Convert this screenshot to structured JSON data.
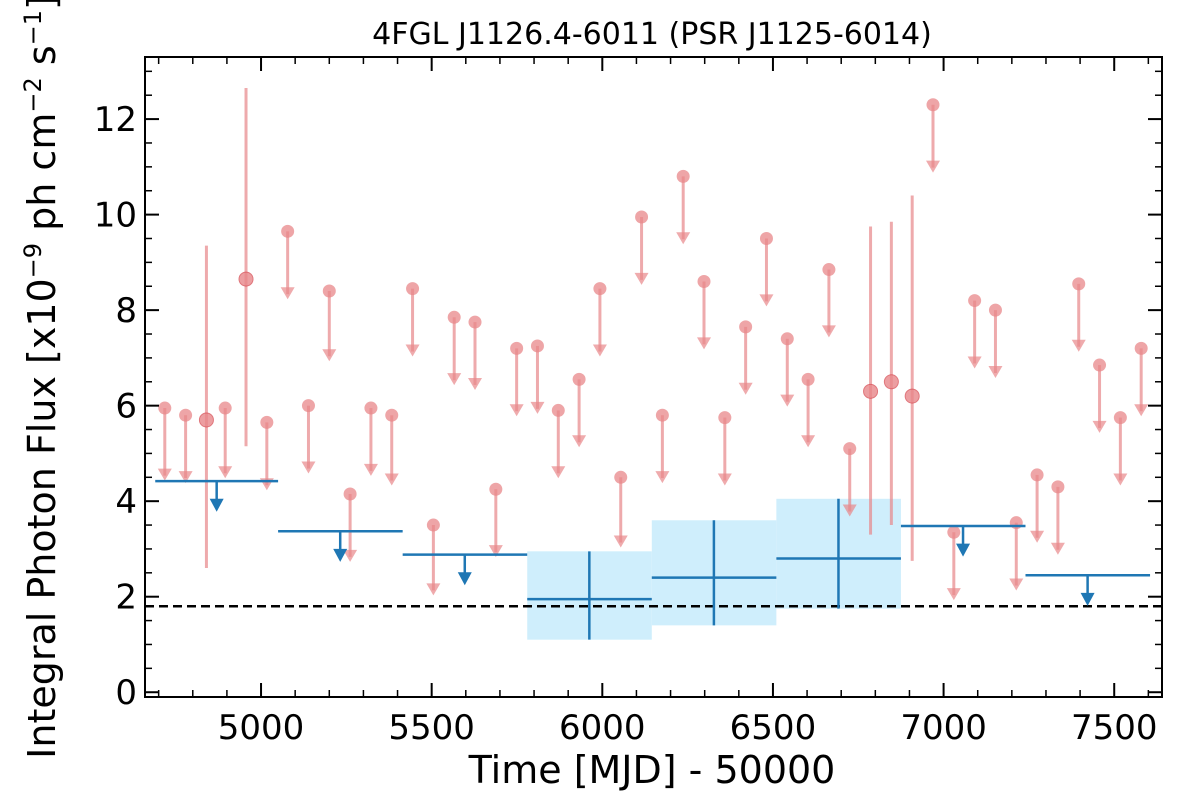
{
  "chart_data": {
    "type": "scatter",
    "title": "4FGL J1126.4-6011 (PSR J1125-6014)",
    "xlabel": "Time [MJD] - 50000",
    "ylabel": "Integral Photon Flux [x10",
    "ylabel_exp": "−9",
    "ylabel_mid": " ph cm",
    "ylabel_exp2": "−2",
    "ylabel_mid2": " s",
    "ylabel_exp3": "−1",
    "ylabel_end": "]",
    "xlim": [
      4660,
      7640
    ],
    "ylim": [
      -0.1,
      13.3
    ],
    "xticks": [
      5000,
      5500,
      6000,
      6500,
      7000,
      7500
    ],
    "xtick_labels": [
      "5000",
      "5500",
      "6000",
      "6500",
      "7000",
      "7500"
    ],
    "yticks": [
      0,
      2,
      4,
      6,
      8,
      10,
      12
    ],
    "ytick_labels": [
      "0",
      "2",
      "4",
      "6",
      "8",
      "10",
      "12"
    ],
    "reference_line": 1.8,
    "colors": {
      "short_bins": "#e8878a",
      "long_bins": "#1f77b4",
      "band_fill": "#cfeefc",
      "reference": "#000000"
    },
    "series": [
      {
        "points": [
          {
            "x": 4718,
            "y": 5.95,
            "upper_limit": true,
            "to": 4.45
          },
          {
            "x": 4779,
            "y": 5.8,
            "upper_limit": true,
            "to": 4.4
          },
          {
            "x": 4840,
            "y": 5.7,
            "upper_limit": false,
            "lo": 2.6,
            "hi": 9.35
          },
          {
            "x": 4895,
            "y": 5.95,
            "upper_limit": true,
            "to": 4.5
          },
          {
            "x": 4956,
            "y": 8.65,
            "upper_limit": false,
            "lo": 5.15,
            "hi": 12.65
          },
          {
            "x": 5017,
            "y": 5.65,
            "upper_limit": true,
            "to": 4.25
          },
          {
            "x": 5078,
            "y": 9.65,
            "upper_limit": true,
            "to": 8.25
          },
          {
            "x": 5139,
            "y": 6.0,
            "upper_limit": true,
            "to": 4.6
          },
          {
            "x": 5200,
            "y": 8.4,
            "upper_limit": true,
            "to": 6.95
          },
          {
            "x": 5261,
            "y": 4.15,
            "upper_limit": true,
            "to": 2.75
          },
          {
            "x": 5322,
            "y": 5.95,
            "upper_limit": true,
            "to": 4.55
          },
          {
            "x": 5383,
            "y": 5.8,
            "upper_limit": true,
            "to": 4.35
          },
          {
            "x": 5444,
            "y": 8.45,
            "upper_limit": true,
            "to": 7.05
          },
          {
            "x": 5505,
            "y": 3.5,
            "upper_limit": true,
            "to": 2.05
          },
          {
            "x": 5566,
            "y": 7.85,
            "upper_limit": true,
            "to": 6.45
          },
          {
            "x": 5627,
            "y": 7.75,
            "upper_limit": true,
            "to": 6.35
          },
          {
            "x": 5688,
            "y": 4.25,
            "upper_limit": true,
            "to": 2.85
          },
          {
            "x": 5749,
            "y": 7.2,
            "upper_limit": true,
            "to": 5.8
          },
          {
            "x": 5810,
            "y": 7.25,
            "upper_limit": true,
            "to": 5.85
          },
          {
            "x": 5871,
            "y": 5.9,
            "upper_limit": true,
            "to": 4.5
          },
          {
            "x": 5932,
            "y": 6.55,
            "upper_limit": true,
            "to": 5.15
          },
          {
            "x": 5993,
            "y": 8.45,
            "upper_limit": true,
            "to": 7.05
          },
          {
            "x": 6054,
            "y": 4.5,
            "upper_limit": true,
            "to": 3.05
          },
          {
            "x": 6115,
            "y": 9.95,
            "upper_limit": true,
            "to": 8.55
          },
          {
            "x": 6176,
            "y": 5.8,
            "upper_limit": true,
            "to": 4.4
          },
          {
            "x": 6237,
            "y": 10.8,
            "upper_limit": true,
            "to": 9.4
          },
          {
            "x": 6298,
            "y": 8.6,
            "upper_limit": true,
            "to": 7.2
          },
          {
            "x": 6359,
            "y": 5.75,
            "upper_limit": true,
            "to": 4.35
          },
          {
            "x": 6420,
            "y": 7.65,
            "upper_limit": true,
            "to": 6.25
          },
          {
            "x": 6481,
            "y": 9.5,
            "upper_limit": true,
            "to": 8.1
          },
          {
            "x": 6542,
            "y": 7.4,
            "upper_limit": true,
            "to": 6.0
          },
          {
            "x": 6603,
            "y": 6.55,
            "upper_limit": true,
            "to": 5.15
          },
          {
            "x": 6664,
            "y": 8.85,
            "upper_limit": true,
            "to": 7.45
          },
          {
            "x": 6725,
            "y": 5.1,
            "upper_limit": true,
            "to": 3.7
          },
          {
            "x": 6786,
            "y": 6.3,
            "upper_limit": false,
            "lo": 3.3,
            "hi": 9.75
          },
          {
            "x": 6847,
            "y": 6.5,
            "upper_limit": false,
            "lo": 3.5,
            "hi": 9.85
          },
          {
            "x": 6908,
            "y": 6.2,
            "upper_limit": false,
            "lo": 2.75,
            "hi": 10.4
          },
          {
            "x": 6969,
            "y": 12.3,
            "upper_limit": true,
            "to": 10.9
          },
          {
            "x": 7030,
            "y": 3.35,
            "upper_limit": true,
            "to": 1.95
          },
          {
            "x": 7091,
            "y": 8.2,
            "upper_limit": true,
            "to": 6.8
          },
          {
            "x": 7152,
            "y": 8.0,
            "upper_limit": true,
            "to": 6.6
          },
          {
            "x": 7213,
            "y": 3.55,
            "upper_limit": true,
            "to": 2.15
          },
          {
            "x": 7274,
            "y": 4.55,
            "upper_limit": true,
            "to": 3.15
          },
          {
            "x": 7335,
            "y": 4.3,
            "upper_limit": true,
            "to": 2.9
          },
          {
            "x": 7396,
            "y": 8.55,
            "upper_limit": true,
            "to": 7.15
          },
          {
            "x": 7457,
            "y": 6.85,
            "upper_limit": true,
            "to": 5.45
          },
          {
            "x": 7518,
            "y": 5.75,
            "upper_limit": true,
            "to": 4.35
          },
          {
            "x": 7579,
            "y": 7.2,
            "upper_limit": true,
            "to": 5.8
          }
        ]
      },
      {
        "bins": [
          {
            "x0": 4690,
            "x1": 5050,
            "y": 4.42,
            "upper_limit": true,
            "arrow_x": 4870,
            "to": 3.8
          },
          {
            "x0": 5050,
            "x1": 5415,
            "y": 3.37,
            "upper_limit": true,
            "arrow_x": 5232,
            "to": 2.75
          },
          {
            "x0": 5415,
            "x1": 5780,
            "y": 2.88,
            "upper_limit": true,
            "arrow_x": 5597,
            "to": 2.26
          },
          {
            "x0": 5780,
            "x1": 6145,
            "y": 1.95,
            "upper_limit": false,
            "xc": 5962,
            "lo": 1.1,
            "hi": 2.95,
            "band": [
              1.1,
              2.95
            ]
          },
          {
            "x0": 6145,
            "x1": 6510,
            "y": 2.4,
            "upper_limit": false,
            "xc": 6327,
            "lo": 1.4,
            "hi": 3.6,
            "band": [
              1.4,
              3.6
            ]
          },
          {
            "x0": 6510,
            "x1": 6875,
            "y": 2.8,
            "upper_limit": false,
            "xc": 6692,
            "lo": 1.75,
            "hi": 4.05,
            "band": [
              1.75,
              4.05
            ]
          },
          {
            "x0": 6875,
            "x1": 7240,
            "y": 3.48,
            "upper_limit": true,
            "arrow_x": 7057,
            "to": 2.86
          },
          {
            "x0": 7240,
            "x1": 7605,
            "y": 2.45,
            "upper_limit": true,
            "arrow_x": 7422,
            "to": 1.83
          }
        ]
      }
    ]
  }
}
